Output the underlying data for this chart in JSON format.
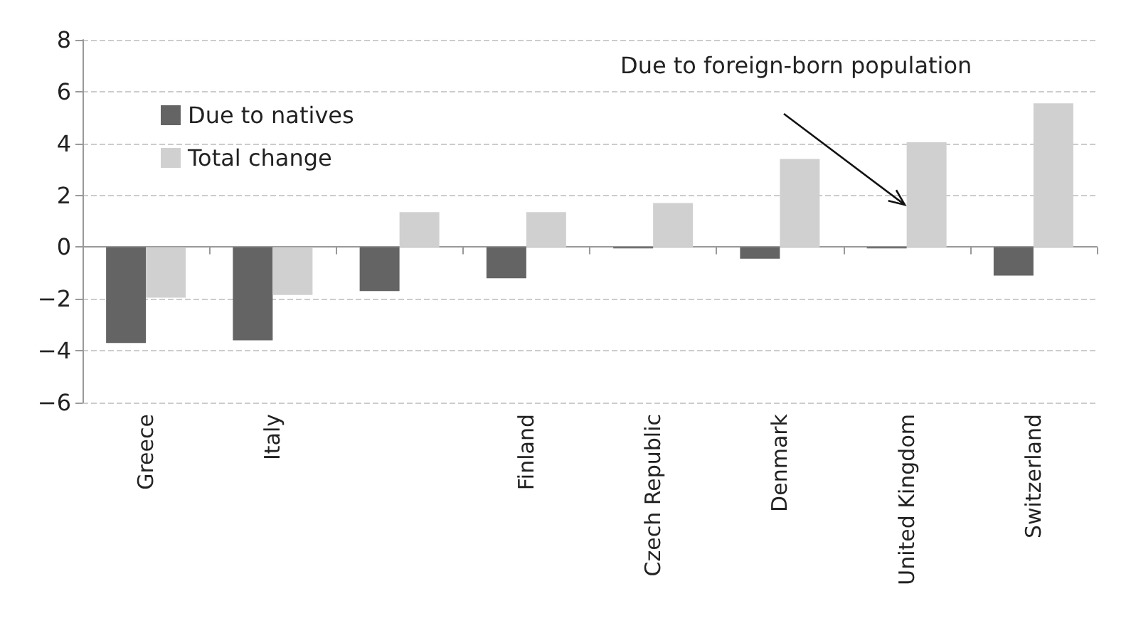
{
  "chart_data": {
    "type": "bar",
    "categories": [
      "Greece",
      "Italy",
      null,
      "Finland",
      "Czech Republic",
      "Denmark",
      "United Kingdom",
      "Switzerland"
    ],
    "series": [
      {
        "name": "Due to natives",
        "color": "#646464",
        "values": [
          -3.7,
          -3.6,
          -1.7,
          -1.2,
          -0.05,
          -0.45,
          -0.05,
          -1.1
        ]
      },
      {
        "name": "Total change",
        "color": "#d0d0d0",
        "values": [
          -1.95,
          -1.85,
          1.35,
          1.35,
          1.7,
          3.4,
          4.05,
          5.55
        ]
      }
    ],
    "annotations": [
      "Due to foreign-born population"
    ],
    "ylim": [
      -6,
      8
    ],
    "yticks": [
      -6,
      -4,
      -2,
      0,
      2,
      4,
      6,
      8
    ],
    "grid": "y",
    "legend": "top left"
  }
}
